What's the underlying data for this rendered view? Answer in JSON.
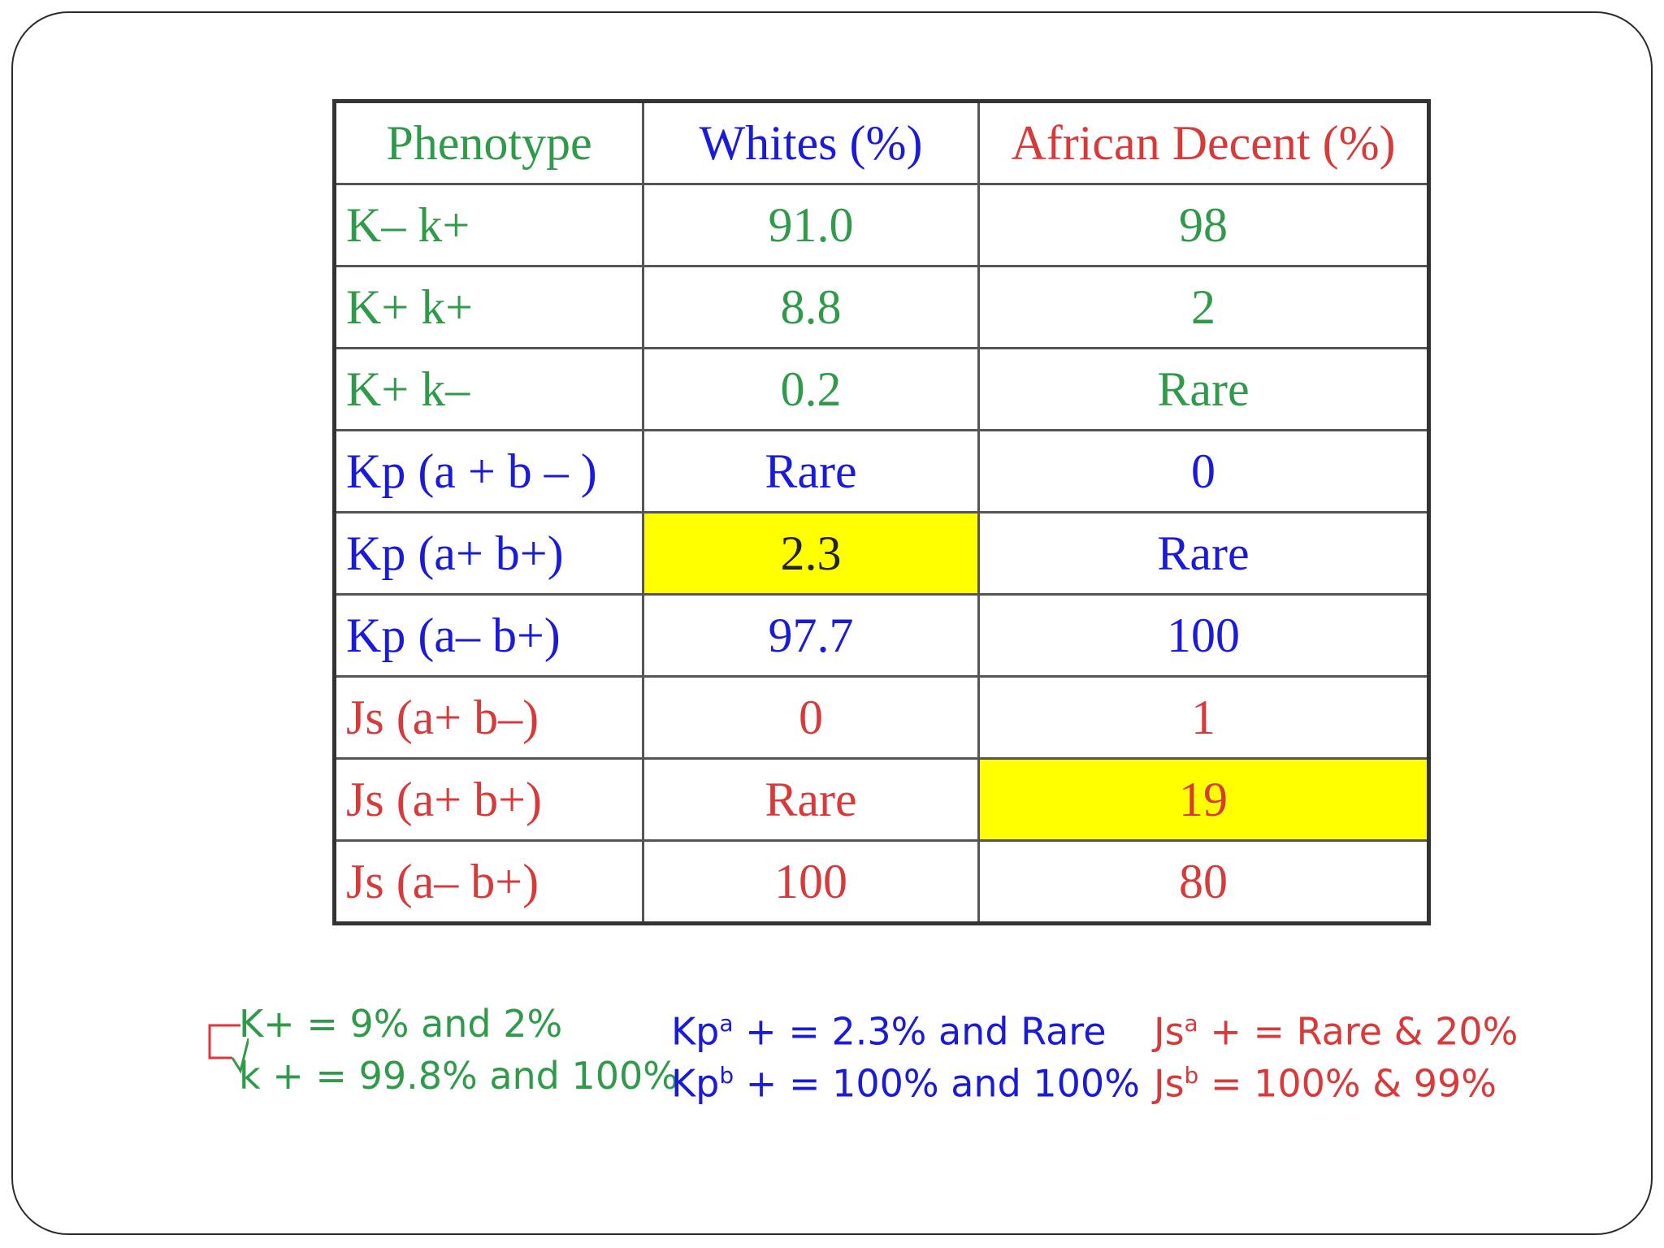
{
  "table": {
    "headers": [
      "Phenotype",
      "Whites (%)",
      "African Decent (%)"
    ],
    "header_colors": [
      "green",
      "blue",
      "red"
    ],
    "rows": [
      {
        "phenotype": "K– k+",
        "whites": "91.0",
        "african": "98",
        "color": "green"
      },
      {
        "phenotype": "K+ k+",
        "whites": "8.8",
        "african": "2",
        "color": "green"
      },
      {
        "phenotype": "K+ k–",
        "whites": "0.2",
        "african": "Rare",
        "color": "green"
      },
      {
        "phenotype": "Kp (a + b – )",
        "whites": "Rare",
        "african": "0",
        "color": "blue"
      },
      {
        "phenotype": "Kp (a+ b+)",
        "whites": "2.3",
        "african": "Rare",
        "color": "blue",
        "highlight": "whites"
      },
      {
        "phenotype": "Kp (a– b+)",
        "whites": "97.7",
        "african": "100",
        "color": "blue"
      },
      {
        "phenotype": "Js (a+ b–)",
        "whites": "0",
        "african": "1",
        "color": "red"
      },
      {
        "phenotype": "Js (a+ b+)",
        "whites": "Rare",
        "african": "19",
        "color": "red",
        "highlight": "african"
      },
      {
        "phenotype": "Js (a– b+)",
        "whites": "100",
        "african": "80",
        "color": "red"
      }
    ],
    "highlight_color": "#ffff00"
  },
  "notes": {
    "kell": [
      "K+ = 9% and 2%",
      "k + = 99.8% and 100%"
    ],
    "kpenny": {
      "line1_sym": "Kp",
      "line1_sup": "a",
      "line1_rest": " + = 2.3% and Rare",
      "line2_sym": "Kp",
      "line2_sup": "b",
      "line2_rest": " + = 100% and 100%"
    },
    "sutter": {
      "line1_sym": "Js",
      "line1_sup": "a",
      "line1_rest": " + = Rare & 20%",
      "line2_sym": "Js",
      "line2_sup": "b",
      "line2_rest": " = 100% & 99%"
    }
  },
  "colors": {
    "green": "#2f9a4a",
    "blue": "#1a1adb",
    "red": "#d83a3a"
  }
}
